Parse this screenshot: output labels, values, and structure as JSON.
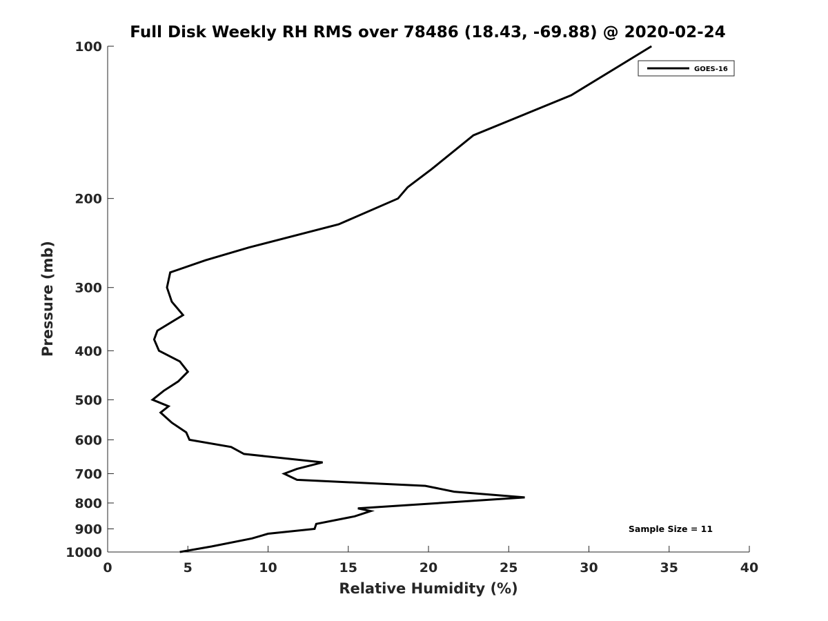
{
  "chart_data": {
    "type": "line",
    "title": "Full Disk Weekly RH RMS over 78486 (18.43, -69.88) @ 2020-02-24",
    "xlabel": "Relative Humidity (%)",
    "ylabel": "Pressure (mb)",
    "xlim": [
      0,
      40
    ],
    "ylim": [
      100,
      1000
    ],
    "y_scale": "log",
    "y_reversed": true,
    "x_ticks": [
      "0",
      "5",
      "10",
      "15",
      "20",
      "25",
      "30",
      "35",
      "40"
    ],
    "y_ticks": [
      "100",
      "200",
      "300",
      "400",
      "500",
      "600",
      "700",
      "800",
      "900",
      "1000"
    ],
    "grid": false,
    "legend_position": "top-right",
    "annotation": "Sample Size = 11",
    "series": [
      {
        "name": "GOES-16",
        "color": "#000000",
        "points": [
          [
            33.9,
            100
          ],
          [
            28.9,
            125
          ],
          [
            22.8,
            150
          ],
          [
            20.2,
            175
          ],
          [
            18.7,
            190
          ],
          [
            18.1,
            200
          ],
          [
            14.4,
            225
          ],
          [
            8.8,
            250
          ],
          [
            6.1,
            265
          ],
          [
            3.9,
            280
          ],
          [
            3.7,
            300
          ],
          [
            4.0,
            320
          ],
          [
            4.7,
            340
          ],
          [
            3.1,
            365
          ],
          [
            2.9,
            380
          ],
          [
            3.2,
            400
          ],
          [
            4.5,
            420
          ],
          [
            5.0,
            440
          ],
          [
            4.4,
            460
          ],
          [
            3.5,
            480
          ],
          [
            2.8,
            500
          ],
          [
            3.8,
            515
          ],
          [
            3.3,
            530
          ],
          [
            4.0,
            555
          ],
          [
            4.9,
            580
          ],
          [
            5.1,
            600
          ],
          [
            7.7,
            620
          ],
          [
            8.5,
            640
          ],
          [
            13.4,
            665
          ],
          [
            11.8,
            685
          ],
          [
            11.0,
            700
          ],
          [
            11.8,
            720
          ],
          [
            19.8,
            740
          ],
          [
            21.6,
            760
          ],
          [
            26.0,
            780
          ],
          [
            15.6,
            820
          ],
          [
            16.4,
            830
          ],
          [
            15.4,
            850
          ],
          [
            13.0,
            880
          ],
          [
            12.9,
            900
          ],
          [
            10.0,
            920
          ],
          [
            9.0,
            940
          ],
          [
            6.5,
            975
          ],
          [
            4.5,
            1000
          ]
        ]
      }
    ]
  }
}
